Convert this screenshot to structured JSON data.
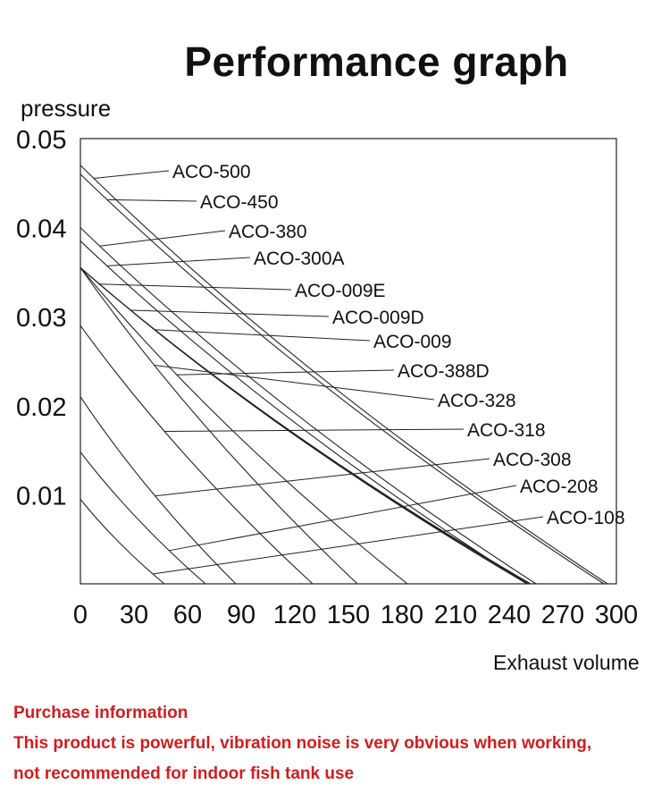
{
  "chart_data": {
    "type": "line",
    "title": "Performance graph",
    "ylabel": "pressure",
    "xlabel": "Exhaust volume",
    "xlim": [
      0,
      300
    ],
    "ylim": [
      0,
      0.05
    ],
    "xticks": [
      "0",
      "30",
      "60",
      "90",
      "120",
      "150",
      "180",
      "210",
      "240",
      "270",
      "300"
    ],
    "yticks": [
      "0.05",
      "0.04",
      "0.03",
      "0.02",
      "0.01"
    ],
    "grid": false,
    "series": [
      {
        "name": "ACO-500",
        "y0": 0.047,
        "x0": 295
      },
      {
        "name": "ACO-450",
        "y0": 0.046,
        "x0": 293
      },
      {
        "name": "ACO-380",
        "y0": 0.04,
        "x0": 255
      },
      {
        "name": "ACO-300A",
        "y0": 0.0385,
        "x0": 250
      },
      {
        "name": "ACO-009E",
        "y0": 0.0355,
        "x0": 252
      },
      {
        "name": "ACO-009D",
        "y0": 0.0355,
        "x0": 251
      },
      {
        "name": "ACO-009",
        "y0": 0.0355,
        "x0": 250
      },
      {
        "name": "ACO-388D",
        "y0": 0.0355,
        "x0": 183
      },
      {
        "name": "ACO-328",
        "y0": 0.0355,
        "x0": 155
      },
      {
        "name": "ACO-318",
        "y0": 0.029,
        "x0": 130
      },
      {
        "name": "ACO-308",
        "y0": 0.021,
        "x0": 87
      },
      {
        "name": "ACO-208",
        "y0": 0.0148,
        "x0": 70
      },
      {
        "name": "ACO-108",
        "y0": 0.0095,
        "x0": 47
      }
    ]
  },
  "notices": [
    "Purchase information",
    "This product is powerful, vibration noise is very obvious when working,",
    "not recommended for indoor fish tank use"
  ]
}
